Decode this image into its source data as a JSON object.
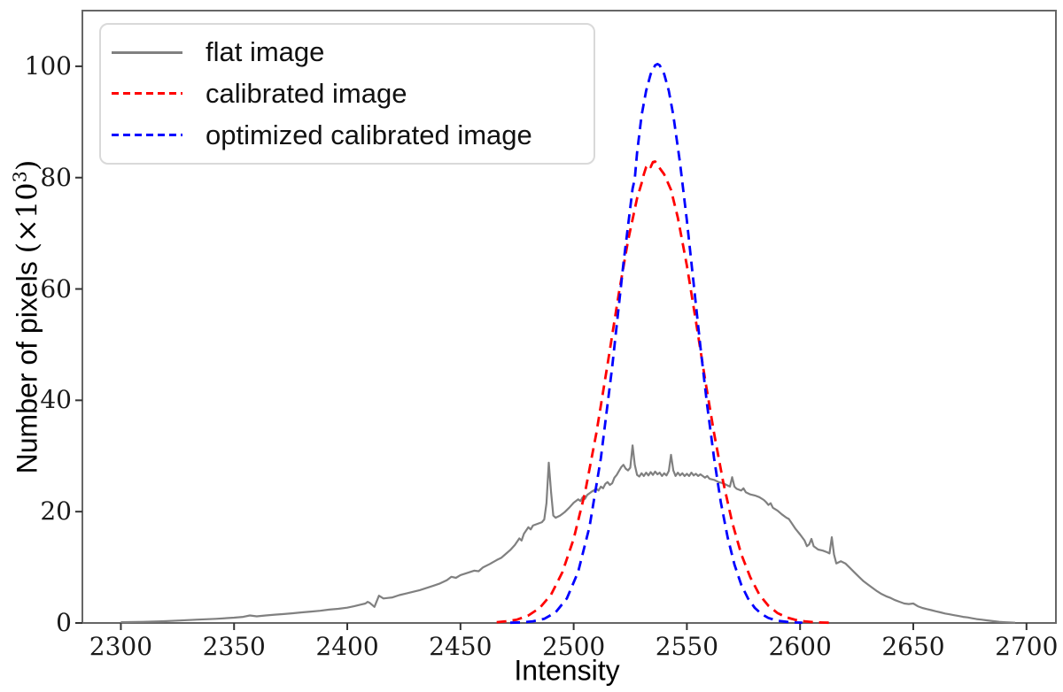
{
  "figure": {
    "background_color": "#ffffff",
    "spine_color": "#666666",
    "tick_color": "#333333",
    "text_color": "#1a1a1a",
    "legend_border_color": "#d9d9d9"
  },
  "chart_data": {
    "type": "line",
    "title": "",
    "xlabel": "Intensity",
    "ylabel": "Number of pixels (×10³)",
    "ylabel_parts": {
      "prefix": "Number of pixels ",
      "open": "(",
      "times_ten": "×10",
      "exponent": "3",
      "close": ")"
    },
    "xlim": [
      2283,
      2713
    ],
    "ylim": [
      0,
      110
    ],
    "x_ticks": [
      2300,
      2350,
      2400,
      2450,
      2500,
      2550,
      2600,
      2650,
      2700
    ],
    "y_ticks": [
      0,
      20,
      40,
      60,
      80,
      100
    ],
    "grid": false,
    "legend_position": "upper left",
    "series": [
      {
        "name": "flat image",
        "color": "#808080",
        "style": "solid",
        "width": 2.2,
        "points": [
          [
            2300,
            0.15
          ],
          [
            2310,
            0.2
          ],
          [
            2318,
            0.3
          ],
          [
            2326,
            0.45
          ],
          [
            2334,
            0.6
          ],
          [
            2342,
            0.75
          ],
          [
            2350,
            0.95
          ],
          [
            2354,
            1.1
          ],
          [
            2357,
            1.35
          ],
          [
            2360,
            1.2
          ],
          [
            2364,
            1.35
          ],
          [
            2368,
            1.5
          ],
          [
            2372,
            1.6
          ],
          [
            2376,
            1.75
          ],
          [
            2380,
            1.9
          ],
          [
            2384,
            2.05
          ],
          [
            2388,
            2.2
          ],
          [
            2392,
            2.4
          ],
          [
            2396,
            2.55
          ],
          [
            2400,
            2.75
          ],
          [
            2403,
            3.0
          ],
          [
            2406,
            3.3
          ],
          [
            2408,
            3.5
          ],
          [
            2409,
            3.8
          ],
          [
            2410,
            3.6
          ],
          [
            2412,
            2.9
          ],
          [
            2414,
            4.9
          ],
          [
            2416,
            4.4
          ],
          [
            2418,
            4.5
          ],
          [
            2420,
            4.6
          ],
          [
            2423,
            5.0
          ],
          [
            2426,
            5.3
          ],
          [
            2429,
            5.6
          ],
          [
            2432,
            5.9
          ],
          [
            2435,
            6.3
          ],
          [
            2438,
            6.7
          ],
          [
            2441,
            7.1
          ],
          [
            2444,
            7.7
          ],
          [
            2446,
            8.3
          ],
          [
            2448,
            8.1
          ],
          [
            2450,
            8.6
          ],
          [
            2453,
            9.0
          ],
          [
            2456,
            9.4
          ],
          [
            2458,
            9.3
          ],
          [
            2460,
            10.0
          ],
          [
            2463,
            10.6
          ],
          [
            2466,
            11.3
          ],
          [
            2468,
            11.7
          ],
          [
            2470,
            12.4
          ],
          [
            2472,
            13.1
          ],
          [
            2474,
            14.0
          ],
          [
            2476,
            15.2
          ],
          [
            2477,
            14.8
          ],
          [
            2478,
            16.0
          ],
          [
            2480,
            17.2
          ],
          [
            2481,
            16.8
          ],
          [
            2482,
            17.5
          ],
          [
            2484,
            17.8
          ],
          [
            2486,
            18.1
          ],
          [
            2487,
            18.6
          ],
          [
            2488,
            21.5
          ],
          [
            2489,
            28.8
          ],
          [
            2490,
            23.5
          ],
          [
            2491,
            19.3
          ],
          [
            2492,
            18.9
          ],
          [
            2494,
            19.3
          ],
          [
            2496,
            19.9
          ],
          [
            2498,
            20.7
          ],
          [
            2500,
            21.6
          ],
          [
            2502,
            22.2
          ],
          [
            2503,
            21.9
          ],
          [
            2504,
            22.6
          ],
          [
            2505,
            22.3
          ],
          [
            2506,
            23.0
          ],
          [
            2508,
            23.6
          ],
          [
            2510,
            24.1
          ],
          [
            2511,
            23.8
          ],
          [
            2512,
            24.5
          ],
          [
            2513,
            24.2
          ],
          [
            2514,
            25.0
          ],
          [
            2515,
            25.3
          ],
          [
            2516,
            24.8
          ],
          [
            2517,
            25.1
          ],
          [
            2518,
            26.1
          ],
          [
            2519,
            26.6
          ],
          [
            2520,
            27.3
          ],
          [
            2521,
            28.0
          ],
          [
            2522,
            28.4
          ],
          [
            2523,
            27.7
          ],
          [
            2524,
            27.4
          ],
          [
            2525,
            27.9
          ],
          [
            2526,
            31.9
          ],
          [
            2527,
            28.4
          ],
          [
            2528,
            26.6
          ],
          [
            2529,
            26.3
          ],
          [
            2530,
            26.9
          ],
          [
            2531,
            26.4
          ],
          [
            2532,
            27.0
          ],
          [
            2533,
            26.5
          ],
          [
            2534,
            27.1
          ],
          [
            2535,
            26.6
          ],
          [
            2536,
            27.2
          ],
          [
            2537,
            26.7
          ],
          [
            2538,
            27.0
          ],
          [
            2539,
            26.4
          ],
          [
            2540,
            26.9
          ],
          [
            2541,
            26.5
          ],
          [
            2542,
            27.3
          ],
          [
            2543,
            30.2
          ],
          [
            2544,
            27.4
          ],
          [
            2545,
            26.4
          ],
          [
            2546,
            27.0
          ],
          [
            2547,
            26.5
          ],
          [
            2548,
            26.9
          ],
          [
            2549,
            26.4
          ],
          [
            2550,
            26.8
          ],
          [
            2551,
            26.4
          ],
          [
            2552,
            27.0
          ],
          [
            2553,
            26.5
          ],
          [
            2554,
            26.8
          ],
          [
            2555,
            26.4
          ],
          [
            2556,
            26.7
          ],
          [
            2557,
            26.4
          ],
          [
            2558,
            26.1
          ],
          [
            2559,
            26.4
          ],
          [
            2560,
            25.9
          ],
          [
            2562,
            25.7
          ],
          [
            2564,
            25.3
          ],
          [
            2566,
            25.1
          ],
          [
            2568,
            24.7
          ],
          [
            2569,
            24.5
          ],
          [
            2570,
            26.2
          ],
          [
            2571,
            24.5
          ],
          [
            2572,
            24.1
          ],
          [
            2574,
            23.8
          ],
          [
            2575,
            24.2
          ],
          [
            2576,
            23.5
          ],
          [
            2578,
            23.1
          ],
          [
            2580,
            22.9
          ],
          [
            2582,
            22.6
          ],
          [
            2584,
            22.1
          ],
          [
            2585,
            21.7
          ],
          [
            2586,
            21.2
          ],
          [
            2587,
            21.5
          ],
          [
            2588,
            20.7
          ],
          [
            2590,
            20.2
          ],
          [
            2592,
            19.5
          ],
          [
            2594,
            18.9
          ],
          [
            2595,
            18.7
          ],
          [
            2596,
            18.1
          ],
          [
            2598,
            16.9
          ],
          [
            2600,
            15.9
          ],
          [
            2602,
            14.8
          ],
          [
            2603,
            13.8
          ],
          [
            2604,
            14.1
          ],
          [
            2605,
            15.1
          ],
          [
            2606,
            13.8
          ],
          [
            2608,
            13.2
          ],
          [
            2610,
            13.0
          ],
          [
            2612,
            12.7
          ],
          [
            2613,
            12.5
          ],
          [
            2614,
            15.4
          ],
          [
            2615,
            12.3
          ],
          [
            2616,
            10.7
          ],
          [
            2618,
            11.1
          ],
          [
            2620,
            10.7
          ],
          [
            2622,
            9.9
          ],
          [
            2624,
            9.1
          ],
          [
            2626,
            8.3
          ],
          [
            2628,
            7.5
          ],
          [
            2630,
            6.9
          ],
          [
            2632,
            6.3
          ],
          [
            2634,
            5.7
          ],
          [
            2636,
            5.2
          ],
          [
            2638,
            4.8
          ],
          [
            2640,
            4.5
          ],
          [
            2642,
            4.1
          ],
          [
            2644,
            3.8
          ],
          [
            2646,
            3.5
          ],
          [
            2648,
            3.4
          ],
          [
            2650,
            3.5
          ],
          [
            2652,
            3.0
          ],
          [
            2654,
            2.7
          ],
          [
            2656,
            2.5
          ],
          [
            2658,
            2.3
          ],
          [
            2660,
            2.1
          ],
          [
            2662,
            1.9
          ],
          [
            2664,
            1.7
          ],
          [
            2666,
            1.55
          ],
          [
            2668,
            1.4
          ],
          [
            2670,
            1.25
          ],
          [
            2672,
            1.1
          ],
          [
            2674,
            1.0
          ],
          [
            2676,
            0.85
          ],
          [
            2678,
            0.7
          ],
          [
            2680,
            0.6
          ],
          [
            2682,
            0.5
          ],
          [
            2684,
            0.4
          ],
          [
            2686,
            0.3
          ],
          [
            2688,
            0.2
          ],
          [
            2690,
            0.15
          ],
          [
            2692,
            0.1
          ],
          [
            2695,
            0.05
          ]
        ]
      },
      {
        "name": "calibrated image",
        "color": "#ff0000",
        "style": "dashed",
        "width": 2.8,
        "points": [
          [
            2466,
            0.15
          ],
          [
            2470,
            0.3
          ],
          [
            2475,
            0.6
          ],
          [
            2480,
            1.35
          ],
          [
            2485,
            2.7
          ],
          [
            2490,
            5.1
          ],
          [
            2495,
            9.1
          ],
          [
            2500,
            15.1
          ],
          [
            2505,
            23.4
          ],
          [
            2510,
            34.1
          ],
          [
            2515,
            46.5
          ],
          [
            2520,
            59.3
          ],
          [
            2524,
            68.7
          ],
          [
            2528,
            76.3
          ],
          [
            2530,
            79.0
          ],
          [
            2531,
            80.6
          ],
          [
            2532,
            81.9
          ],
          [
            2533,
            82.4
          ],
          [
            2534,
            81.9
          ],
          [
            2535,
            82.8
          ],
          [
            2536,
            82.9
          ],
          [
            2537,
            82.3
          ],
          [
            2538,
            81.7
          ],
          [
            2540,
            80.6
          ],
          [
            2543,
            77.8
          ],
          [
            2546,
            72.8
          ],
          [
            2550,
            64.2
          ],
          [
            2554,
            54.2
          ],
          [
            2558,
            43.9
          ],
          [
            2562,
            34.1
          ],
          [
            2566,
            25.4
          ],
          [
            2570,
            18.1
          ],
          [
            2574,
            12.4
          ],
          [
            2578,
            8.2
          ],
          [
            2582,
            5.1
          ],
          [
            2586,
            3.1
          ],
          [
            2590,
            1.8
          ],
          [
            2594,
            1.0
          ],
          [
            2598,
            0.55
          ],
          [
            2602,
            0.3
          ],
          [
            2606,
            0.15
          ],
          [
            2610,
            0.08
          ],
          [
            2613,
            0.05
          ]
        ]
      },
      {
        "name": "optimized calibrated image",
        "color": "#0000ff",
        "style": "dashed",
        "width": 2.8,
        "points": [
          [
            2472,
            0.05
          ],
          [
            2477,
            0.1
          ],
          [
            2482,
            0.3
          ],
          [
            2487,
            0.75
          ],
          [
            2492,
            1.9
          ],
          [
            2497,
            4.4
          ],
          [
            2502,
            9.2
          ],
          [
            2507,
            17.3
          ],
          [
            2512,
            29.6
          ],
          [
            2517,
            46.0
          ],
          [
            2522,
            64.6
          ],
          [
            2526,
            78.0
          ],
          [
            2527,
            79.8
          ],
          [
            2528,
            84.5
          ],
          [
            2530,
            91.2
          ],
          [
            2532,
            95.6
          ],
          [
            2534,
            98.6
          ],
          [
            2536,
            100.2
          ],
          [
            2537,
            100.4
          ],
          [
            2538,
            100.2
          ],
          [
            2540,
            98.6
          ],
          [
            2542,
            95.6
          ],
          [
            2544,
            91.2
          ],
          [
            2547,
            82.6
          ],
          [
            2550,
            72.3
          ],
          [
            2553,
            60.9
          ],
          [
            2556,
            49.6
          ],
          [
            2559,
            39.0
          ],
          [
            2562,
            29.6
          ],
          [
            2565,
            21.7
          ],
          [
            2568,
            15.4
          ],
          [
            2571,
            10.5
          ],
          [
            2574,
            6.9
          ],
          [
            2577,
            4.4
          ],
          [
            2580,
            2.7
          ],
          [
            2583,
            1.6
          ],
          [
            2586,
            0.9
          ],
          [
            2590,
            0.4
          ],
          [
            2594,
            0.2
          ],
          [
            2598,
            0.1
          ],
          [
            2601,
            0.05
          ]
        ]
      }
    ]
  }
}
